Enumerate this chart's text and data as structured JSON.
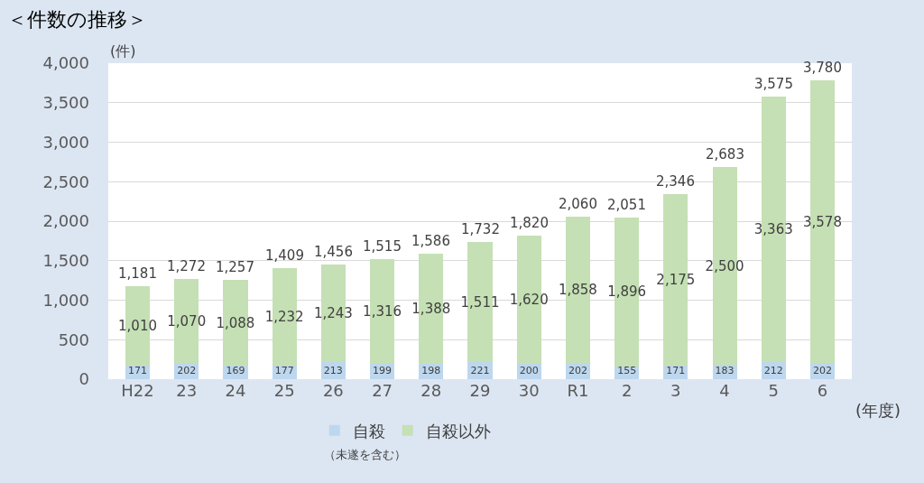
{
  "chart_data": {
    "type": "bar",
    "title": "＜件数の推移＞",
    "ylabel": "(件)",
    "xlabel": "(年度)",
    "categories": [
      "H22",
      "23",
      "24",
      "25",
      "26",
      "27",
      "28",
      "29",
      "30",
      "R1",
      "2",
      "3",
      "4",
      "5",
      "6"
    ],
    "stacked": true,
    "series": [
      {
        "name": "自殺",
        "color": "#bdd7ee",
        "values": [
          171,
          202,
          169,
          177,
          213,
          199,
          198,
          221,
          200,
          202,
          155,
          171,
          183,
          212,
          202
        ],
        "value_labels": [
          "171",
          "202",
          "169",
          "177",
          "213",
          "199",
          "198",
          "221",
          "200",
          "202",
          "155",
          "171",
          "183",
          "212",
          "202"
        ]
      },
      {
        "name": "自殺以外",
        "color": "#c5e0b4",
        "values": [
          1010,
          1070,
          1088,
          1232,
          1243,
          1316,
          1388,
          1511,
          1620,
          1858,
          1896,
          2175,
          2500,
          3363,
          3578
        ],
        "value_labels": [
          "1,010",
          "1,070",
          "1,088",
          "1,232",
          "1,243",
          "1,316",
          "1,388",
          "1,511",
          "1,620",
          "1,858",
          "1,896",
          "2,175",
          "2,500",
          "3,363",
          "3,578"
        ]
      }
    ],
    "totals": [
      "1,181",
      "1,272",
      "1,257",
      "1,409",
      "1,456",
      "1,515",
      "1,586",
      "1,732",
      "1,820",
      "2,060",
      "2,051",
      "2,346",
      "2,683",
      "3,575",
      "3,780"
    ],
    "ylim": [
      0,
      4000
    ],
    "yticks": [
      0,
      {
        "value": 500,
        "label": "500"
      },
      {
        "value": 1000,
        "label": "1,000"
      },
      {
        "value": 1500,
        "label": "1,500"
      },
      {
        "value": 2000,
        "label": "2,000"
      },
      {
        "value": 2500,
        "label": "2,500"
      },
      {
        "value": 3000,
        "label": "3,000"
      },
      {
        "value": 3500,
        "label": "3,500"
      },
      {
        "value": 4000,
        "label": "4,000"
      }
    ],
    "grid": "y",
    "legend": "bottom",
    "annotations": [
      "（未遂を含む）"
    ]
  }
}
